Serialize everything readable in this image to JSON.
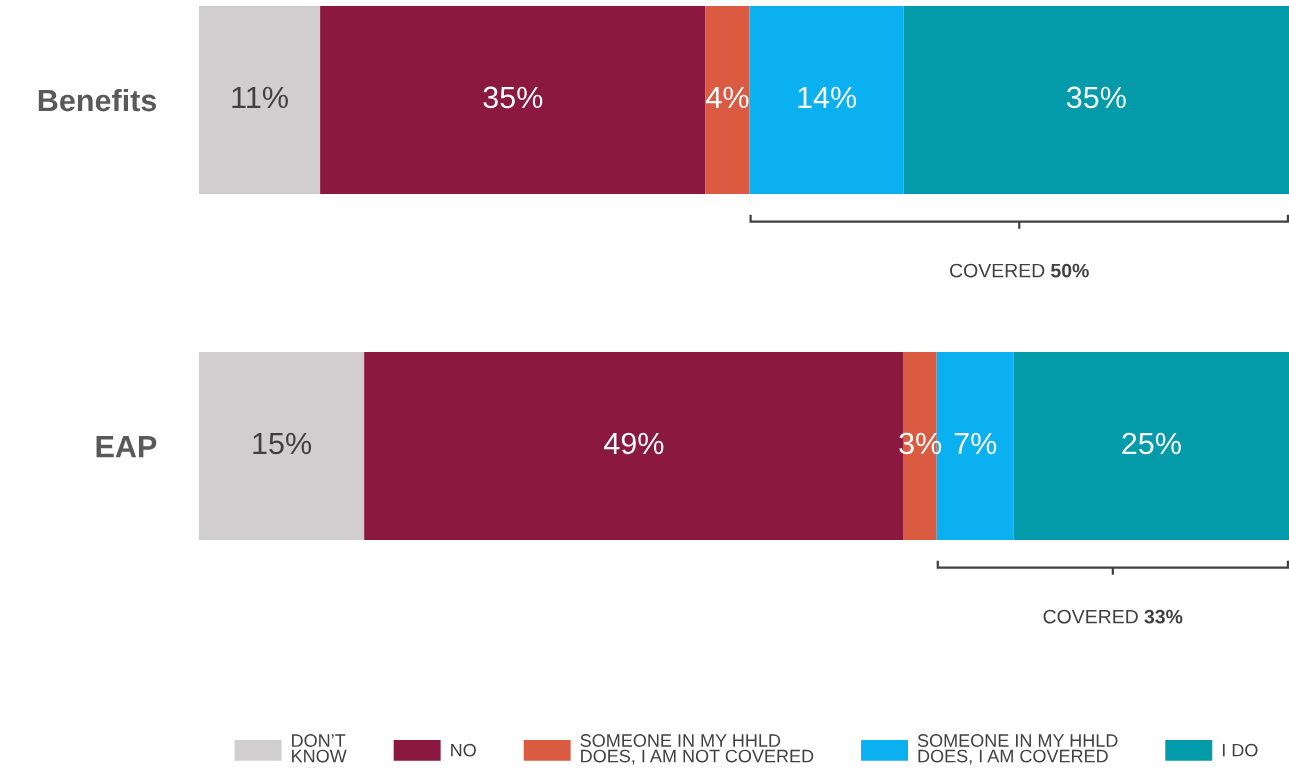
{
  "chart_data": {
    "type": "bar",
    "orientation": "horizontal",
    "stacked": true,
    "categories": [
      "Benefits",
      "EAP"
    ],
    "series": [
      {
        "name": "DON’T\nKNOW",
        "color": "#d0cece",
        "values": [
          11,
          15
        ],
        "value_labels": [
          "11%",
          "15%"
        ]
      },
      {
        "name": "NO",
        "color": "#8b183f",
        "values": [
          35,
          49
        ],
        "value_labels": [
          "35%",
          "49%"
        ]
      },
      {
        "name": "SOMEONE IN MY HHLD\nDOES, I AM NOT COVERED",
        "color": "#db5a42",
        "values": [
          4,
          3
        ],
        "value_labels": [
          "4%",
          "3%"
        ]
      },
      {
        "name": "SOMEONE IN MY HHLD\nDOES, I AM COVERED",
        "color": "#0ab0f0",
        "values": [
          14,
          7
        ],
        "value_labels": [
          "14%",
          "7%"
        ]
      },
      {
        "name": "I DO",
        "color": "#039ba9",
        "values": [
          35,
          25
        ],
        "value_labels": [
          "35%",
          "25%"
        ]
      }
    ],
    "annotations": [
      "COVERED 50%",
      "COVERED 33%"
    ],
    "legend": "bottom",
    "tick_labels": "y"
  }
}
